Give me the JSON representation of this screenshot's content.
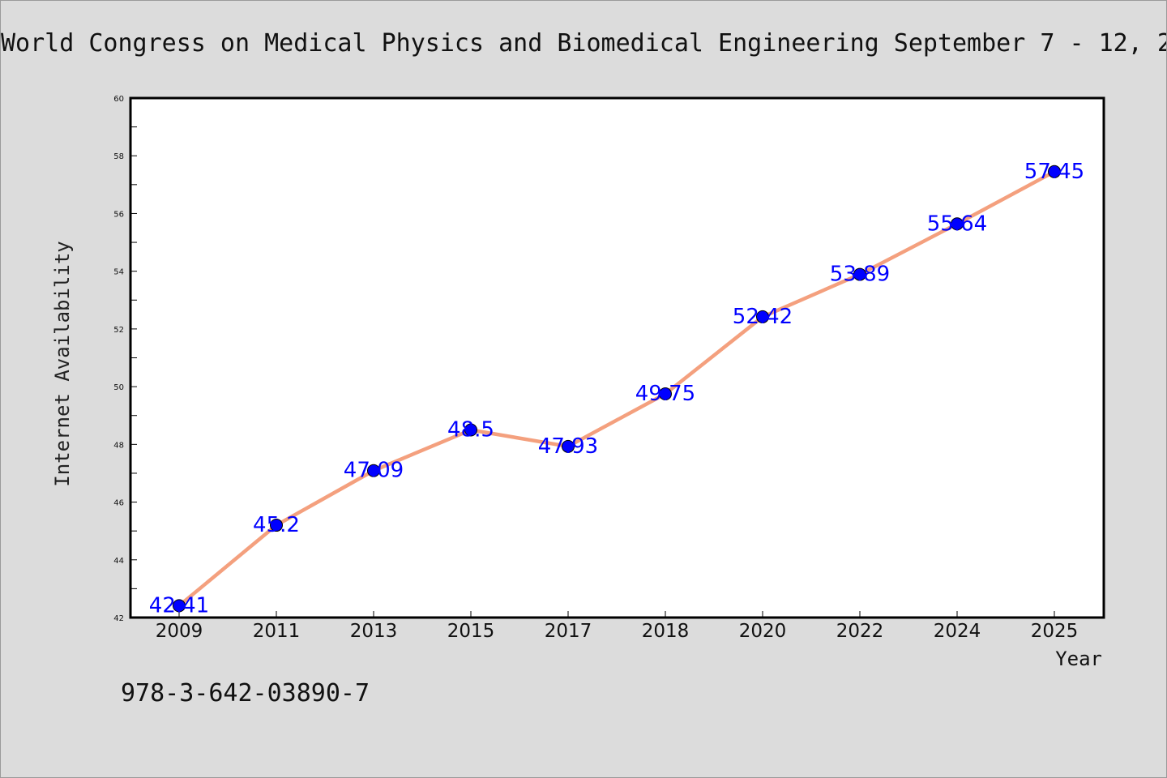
{
  "title": "World Congress on Medical Physics and Biomedical Engineering September 7 - 12, 2",
  "footer": "978-3-642-03890-7",
  "colors": {
    "background": "#dcdcdc",
    "plot_background": "#ffffff",
    "line": "#f4a07e",
    "marker": "#0000ff",
    "data_label": "#0000ff"
  },
  "chart_data": {
    "type": "line",
    "title": "World Congress on Medical Physics and Biomedical Engineering September 7 - 12, 2",
    "xlabel": "Year",
    "ylabel": "Internet Availability",
    "categories": [
      "2009",
      "2011",
      "2013",
      "2015",
      "2017",
      "2018",
      "2020",
      "2022",
      "2024",
      "2025"
    ],
    "series": [
      {
        "values": [
          42.41,
          45.2,
          47.09,
          48.5,
          47.93,
          49.75,
          52.42,
          53.89,
          55.64,
          57.45
        ],
        "labels": [
          "42.41",
          "45.2",
          "47.09",
          "48.5",
          "47.93",
          "49.75",
          "52.42",
          "53.89",
          "55.64",
          "57.45"
        ]
      }
    ],
    "ylim": [
      42,
      60
    ],
    "yticks": [
      "42",
      "44",
      "46",
      "48",
      "50",
      "52",
      "54",
      "56",
      "58",
      "60"
    ],
    "grid": false,
    "legend": "none"
  }
}
